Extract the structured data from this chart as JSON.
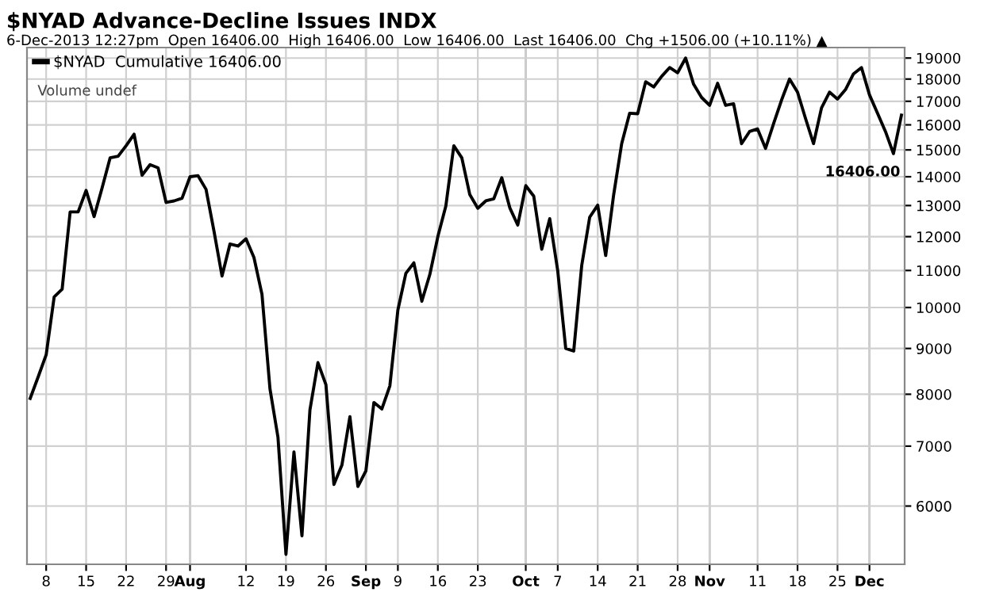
{
  "chart_data": {
    "type": "line",
    "title": "$NYAD Advance-Decline Issues INDX",
    "subtitle": "6-Dec-2013 12:27pm  Open 16406.00  High 16406.00  Low 16406.00  Last 16406.00  Chg +1506.00 (+10.11%) ▲",
    "annotations": [
      "Volume undef",
      "16406.00"
    ],
    "categories": [
      null,
      null,
      "8",
      null,
      null,
      null,
      null,
      "15",
      null,
      null,
      null,
      null,
      "22",
      null,
      null,
      null,
      null,
      "29",
      null,
      null,
      "Aug",
      null,
      null,
      null,
      null,
      null,
      null,
      "12",
      null,
      null,
      null,
      null,
      "19",
      null,
      null,
      null,
      null,
      "26",
      null,
      null,
      null,
      null,
      "Sep",
      null,
      null,
      null,
      "9",
      null,
      null,
      null,
      null,
      "16",
      null,
      null,
      null,
      null,
      "23",
      null,
      null,
      null,
      null,
      null,
      "Oct",
      null,
      null,
      null,
      "7",
      null,
      null,
      null,
      null,
      "14",
      null,
      null,
      null,
      null,
      "21",
      null,
      null,
      null,
      null,
      "28",
      null,
      null,
      null,
      "Nov",
      null,
      null,
      null,
      null,
      null,
      "11",
      null,
      null,
      null,
      null,
      "18",
      null,
      null,
      null,
      null,
      "25",
      null,
      null,
      null,
      "Dec",
      null,
      null,
      null,
      null
    ],
    "series": [
      {
        "name": "$NYAD  Cumulative 16406.00",
        "color": "#000000",
        "values": [
          7915,
          8366,
          8854,
          10275,
          10485,
          12789,
          12789,
          13516,
          12634,
          13608,
          14697,
          14758,
          15161,
          15619,
          14056,
          14443,
          14326,
          13104,
          13156,
          13246,
          13999,
          14038,
          13554,
          12164,
          10845,
          11776,
          11713,
          11936,
          11369,
          10345,
          8111,
          7162,
          5299,
          6896,
          5557,
          7684,
          8678,
          8199,
          6343,
          6667,
          7551,
          6309,
          6568,
          7832,
          7704,
          8176,
          9934,
          10919,
          11218,
          10165,
          10888,
          12000,
          12980,
          15161,
          14697,
          13370,
          12910,
          13156,
          13228,
          13963,
          12928,
          12364,
          13682,
          13318,
          11619,
          12566,
          10993,
          9000,
          8939,
          11142,
          12618,
          13014,
          11432,
          13370,
          15244,
          16486,
          16465,
          17877,
          17638,
          18124,
          18542,
          18295,
          18999,
          17759,
          17167,
          16823,
          17804,
          16823,
          16891,
          15244,
          15727,
          15831,
          15059,
          16047,
          17053,
          18000,
          17404,
          16265,
          15244,
          16711,
          17404,
          17097,
          17518,
          18243,
          18542,
          17285,
          16486,
          15727,
          14857,
          16406
        ]
      }
    ],
    "log": "y",
    "ylim": [
      5165,
      19520
    ],
    "yticks": [
      6000,
      7000,
      8000,
      9000,
      10000,
      11000,
      12000,
      13000,
      14000,
      15000,
      16000,
      17000,
      18000,
      19000
    ],
    "grid": true,
    "legend": "top left",
    "marker": "none",
    "line_style": "solid"
  }
}
